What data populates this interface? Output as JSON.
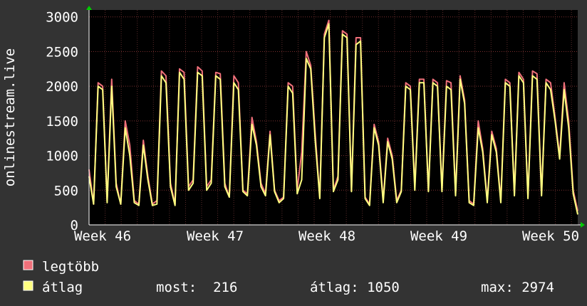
{
  "chart_data": {
    "type": "line",
    "ylabel": "onlinestream.live",
    "ylim": [
      0,
      3100
    ],
    "y_ticks": [
      "0",
      "500",
      "1000",
      "1500",
      "2000",
      "2500",
      "3000"
    ],
    "x_ticks": [
      "Week 46",
      "Week 47",
      "Week 48",
      "Week 49",
      "Week 50"
    ],
    "grid": true,
    "legend_placement": "bottom-left",
    "series": [
      {
        "name": "legtöbb",
        "color": "#f0707a",
        "values": [
          800,
          300,
          2050,
          2000,
          350,
          2100,
          600,
          300,
          1500,
          1150,
          350,
          300,
          1220,
          700,
          300,
          350,
          2220,
          2150,
          600,
          300,
          2250,
          2200,
          550,
          650,
          2280,
          2220,
          550,
          650,
          2200,
          2180,
          600,
          400,
          2150,
          2050,
          500,
          450,
          1550,
          1200,
          600,
          450,
          1350,
          500,
          350,
          400,
          2050,
          2000,
          500,
          1050,
          2500,
          2300,
          1300,
          400,
          2750,
          2950,
          500,
          700,
          2800,
          2750,
          500,
          2700,
          2700,
          400,
          300,
          1450,
          1200,
          350,
          1250,
          1000,
          350,
          500,
          2050,
          2000,
          550,
          2100,
          2100,
          500,
          2100,
          2050,
          500,
          2080,
          2050,
          450,
          2150,
          1800,
          350,
          300,
          1500,
          1100,
          350,
          1350,
          1100,
          350,
          2100,
          2050,
          450,
          2200,
          2100,
          400,
          2220,
          2180,
          450,
          2100,
          2050,
          1550,
          1000,
          2050,
          1500,
          500,
          200
        ]
      },
      {
        "name": "átlag",
        "color": "#ffff80",
        "values": [
          700,
          300,
          2000,
          1950,
          320,
          2000,
          550,
          300,
          1400,
          1000,
          320,
          280,
          1150,
          650,
          280,
          300,
          2150,
          2050,
          550,
          280,
          2200,
          2100,
          500,
          600,
          2200,
          2150,
          500,
          600,
          2150,
          2100,
          550,
          400,
          2050,
          1950,
          480,
          420,
          1450,
          1150,
          550,
          420,
          1300,
          480,
          320,
          380,
          2000,
          1900,
          450,
          650,
          2400,
          2250,
          1200,
          380,
          2700,
          2900,
          480,
          650,
          2750,
          2700,
          480,
          2600,
          2650,
          380,
          280,
          1400,
          1150,
          320,
          1200,
          950,
          320,
          480,
          2000,
          1950,
          500,
          2050,
          2050,
          480,
          2050,
          2000,
          480,
          2000,
          1950,
          420,
          2100,
          1750,
          320,
          280,
          1400,
          1050,
          320,
          1300,
          1050,
          320,
          2050,
          2000,
          420,
          2150,
          2050,
          380,
          2150,
          2100,
          420,
          2050,
          1950,
          1500,
          950,
          1950,
          1400,
          450,
          150
        ]
      }
    ]
  },
  "legend": {
    "max_label": "legtöbb",
    "avg_label": "átlag",
    "now_text": "most:  216",
    "avg_text": "átlag: 1050",
    "max_text": "max: 2974"
  }
}
